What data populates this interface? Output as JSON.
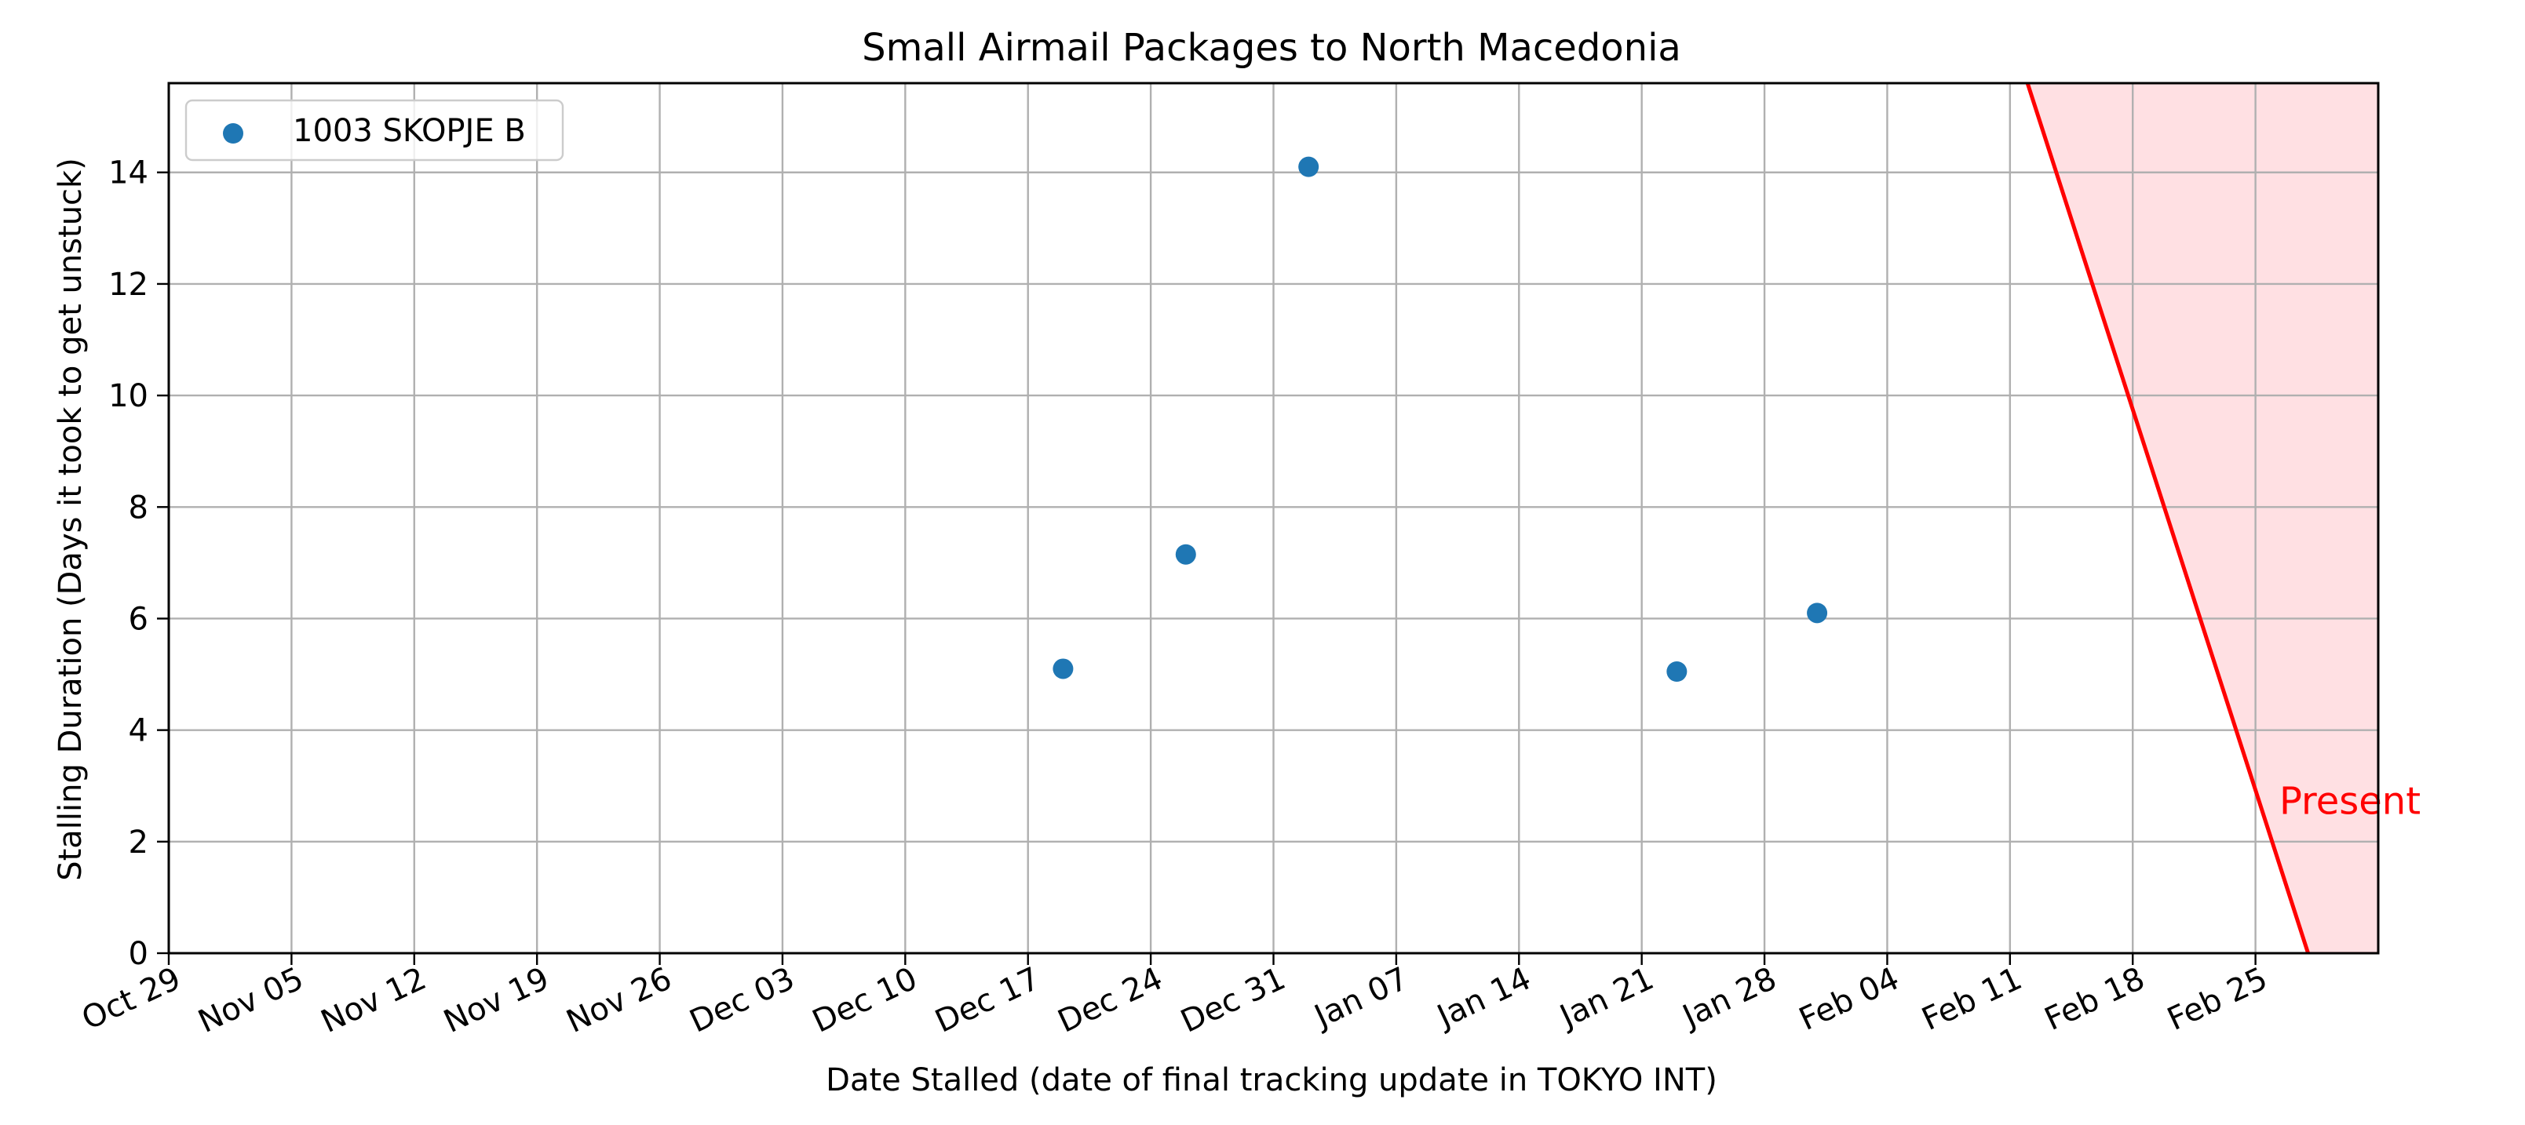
{
  "chart_data": {
    "type": "scatter",
    "title": "Small Airmail Packages to North Macedonia",
    "xlabel": "Date Stalled (date of final tracking update in TOKYO INT)",
    "ylabel": "Stalling Duration (Days it took to get unstuck)",
    "x_axis_type": "date",
    "xlim": [
      "2023-10-29",
      "2024-03-03"
    ],
    "ylim": [
      0,
      15.6
    ],
    "x_ticks": [
      "2023-10-29",
      "2023-11-05",
      "2023-11-12",
      "2023-11-19",
      "2023-11-26",
      "2023-12-03",
      "2023-12-10",
      "2023-12-17",
      "2023-12-24",
      "2023-12-31",
      "2024-01-07",
      "2024-01-14",
      "2024-01-21",
      "2024-01-28",
      "2024-02-04",
      "2024-02-11",
      "2024-02-18",
      "2024-02-25"
    ],
    "x_tick_labels": [
      "Oct 29",
      "Nov 05",
      "Nov 12",
      "Nov 19",
      "Nov 26",
      "Dec 03",
      "Dec 10",
      "Dec 17",
      "Dec 24",
      "Dec 31",
      "Jan 07",
      "Jan 14",
      "Jan 21",
      "Jan 28",
      "Feb 04",
      "Feb 11",
      "Feb 18",
      "Feb 25"
    ],
    "y_ticks": [
      0,
      2,
      4,
      6,
      8,
      10,
      12,
      14
    ],
    "y_tick_labels": [
      "0",
      "2",
      "4",
      "6",
      "8",
      "10",
      "12",
      "14"
    ],
    "grid": true,
    "legend_position": "top-left",
    "series": [
      {
        "name": "1003 SKOPJE B",
        "color": "#1f77b4",
        "points": [
          {
            "x": "2023-12-19",
            "y": 5.1
          },
          {
            "x": "2023-12-26",
            "y": 7.15
          },
          {
            "x": "2024-01-02",
            "y": 14.1
          },
          {
            "x": "2024-01-23",
            "y": 5.05
          },
          {
            "x": "2024-01-31",
            "y": 6.1
          }
        ]
      }
    ],
    "present_line": {
      "color": "#ff0000",
      "shade_color": "#ffe0e3",
      "points": [
        {
          "x": "2024-02-12",
          "y": 15.6
        },
        {
          "x": "2024-02-28",
          "y": 0
        }
      ],
      "label": "Present",
      "label_anchor": {
        "x": "2024-02-26",
        "y": 2.5
      }
    }
  }
}
